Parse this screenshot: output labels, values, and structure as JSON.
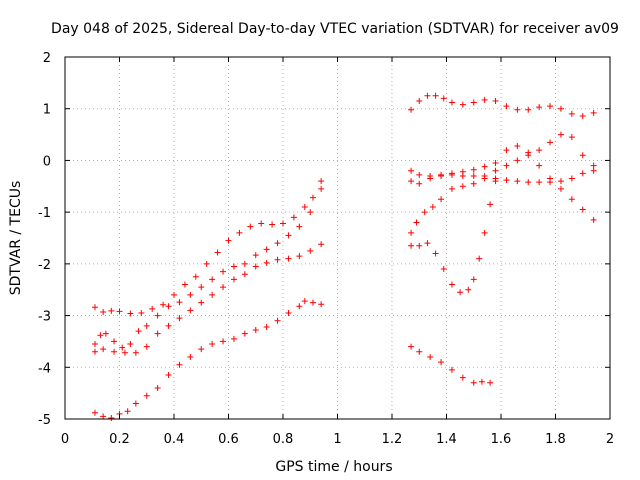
{
  "chart_data": {
    "type": "scatter",
    "title": "Day 048 of 2025, Sidereal Day-to-day VTEC variation (SDTVAR) for receiver av09",
    "xlabel": "GPS time / hours",
    "ylabel": "SDTVAR / TECUs",
    "xlim": [
      0,
      2
    ],
    "ylim": [
      -5,
      2
    ],
    "x_ticks": [
      0,
      0.2,
      0.4,
      0.6,
      0.8,
      1,
      1.2,
      1.4,
      1.6,
      1.8,
      2
    ],
    "x_tick_labels": [
      "0",
      "0.2",
      "0.4",
      "0.6",
      "0.8",
      "1",
      "1.2",
      "1.4",
      "1.6",
      "1.8",
      "2"
    ],
    "y_ticks": [
      2,
      1,
      0,
      -1,
      -2,
      -3,
      -4,
      -5
    ],
    "y_tick_labels": [
      "2",
      "1",
      "0",
      "-1",
      "-2",
      "-3",
      "-4",
      "-5"
    ],
    "grid": true,
    "marker": "plus",
    "marker_color": "#ff0000",
    "series": [
      {
        "name": "arc-a1",
        "points": [
          [
            0.11,
            -2.84
          ],
          [
            0.14,
            -2.93
          ],
          [
            0.17,
            -2.91
          ],
          [
            0.2,
            -2.92
          ],
          [
            0.24,
            -2.96
          ],
          [
            0.28,
            -2.95
          ],
          [
            0.32,
            -2.87
          ],
          [
            0.36,
            -2.79
          ],
          [
            0.4,
            -2.6
          ],
          [
            0.44,
            -2.4
          ],
          [
            0.48,
            -2.25
          ],
          [
            0.52,
            -2.0
          ],
          [
            0.56,
            -1.78
          ],
          [
            0.6,
            -1.55
          ],
          [
            0.64,
            -1.4
          ],
          [
            0.68,
            -1.28
          ],
          [
            0.72,
            -1.22
          ],
          [
            0.76,
            -1.24
          ],
          [
            0.8,
            -1.22
          ],
          [
            0.84,
            -1.1
          ],
          [
            0.88,
            -0.9
          ],
          [
            0.91,
            -0.72
          ],
          [
            0.94,
            -0.4
          ]
        ]
      },
      {
        "name": "arc-a2",
        "points": [
          [
            0.11,
            -3.55
          ],
          [
            0.13,
            -3.38
          ],
          [
            0.15,
            -3.35
          ],
          [
            0.18,
            -3.5
          ],
          [
            0.21,
            -3.62
          ],
          [
            0.24,
            -3.55
          ],
          [
            0.27,
            -3.3
          ],
          [
            0.3,
            -3.2
          ],
          [
            0.34,
            -3.0
          ],
          [
            0.38,
            -2.82
          ],
          [
            0.42,
            -2.74
          ],
          [
            0.46,
            -2.6
          ],
          [
            0.5,
            -2.45
          ],
          [
            0.54,
            -2.3
          ],
          [
            0.58,
            -2.15
          ],
          [
            0.62,
            -2.05
          ],
          [
            0.66,
            -2.0
          ],
          [
            0.7,
            -1.83
          ],
          [
            0.74,
            -1.72
          ],
          [
            0.78,
            -1.6
          ],
          [
            0.82,
            -1.45
          ],
          [
            0.86,
            -1.28
          ],
          [
            0.9,
            -1.0
          ],
          [
            0.94,
            -0.55
          ]
        ]
      },
      {
        "name": "arc-a3",
        "points": [
          [
            0.11,
            -3.7
          ],
          [
            0.14,
            -3.65
          ],
          [
            0.18,
            -3.7
          ],
          [
            0.22,
            -3.72
          ],
          [
            0.26,
            -3.72
          ],
          [
            0.3,
            -3.6
          ],
          [
            0.34,
            -3.35
          ],
          [
            0.38,
            -3.2
          ],
          [
            0.42,
            -3.05
          ],
          [
            0.46,
            -2.9
          ],
          [
            0.5,
            -2.75
          ],
          [
            0.54,
            -2.6
          ],
          [
            0.58,
            -2.45
          ],
          [
            0.62,
            -2.3
          ],
          [
            0.66,
            -2.2
          ],
          [
            0.7,
            -2.05
          ],
          [
            0.74,
            -1.98
          ],
          [
            0.78,
            -1.92
          ],
          [
            0.82,
            -1.9
          ],
          [
            0.86,
            -1.85
          ],
          [
            0.9,
            -1.75
          ],
          [
            0.94,
            -1.62
          ]
        ]
      },
      {
        "name": "arc-a4",
        "points": [
          [
            0.11,
            -4.88
          ],
          [
            0.14,
            -4.95
          ],
          [
            0.17,
            -4.98
          ],
          [
            0.2,
            -4.9
          ],
          [
            0.23,
            -4.85
          ],
          [
            0.26,
            -4.7
          ],
          [
            0.3,
            -4.55
          ],
          [
            0.34,
            -4.4
          ],
          [
            0.38,
            -4.15
          ],
          [
            0.42,
            -3.95
          ],
          [
            0.46,
            -3.8
          ],
          [
            0.5,
            -3.65
          ],
          [
            0.54,
            -3.55
          ],
          [
            0.58,
            -3.5
          ],
          [
            0.62,
            -3.45
          ],
          [
            0.66,
            -3.35
          ],
          [
            0.7,
            -3.28
          ],
          [
            0.74,
            -3.22
          ],
          [
            0.78,
            -3.1
          ],
          [
            0.82,
            -2.95
          ],
          [
            0.86,
            -2.82
          ],
          [
            0.88,
            -2.72
          ],
          [
            0.91,
            -2.75
          ],
          [
            0.94,
            -2.78
          ]
        ]
      },
      {
        "name": "arc-b1",
        "points": [
          [
            1.27,
            0.98
          ],
          [
            1.3,
            1.15
          ],
          [
            1.33,
            1.25
          ],
          [
            1.36,
            1.25
          ],
          [
            1.39,
            1.2
          ],
          [
            1.42,
            1.12
          ],
          [
            1.46,
            1.08
          ],
          [
            1.5,
            1.12
          ],
          [
            1.54,
            1.17
          ],
          [
            1.58,
            1.15
          ],
          [
            1.62,
            1.05
          ],
          [
            1.66,
            0.98
          ],
          [
            1.7,
            0.98
          ],
          [
            1.74,
            1.03
          ],
          [
            1.78,
            1.05
          ],
          [
            1.82,
            1.0
          ],
          [
            1.86,
            0.9
          ],
          [
            1.9,
            0.86
          ],
          [
            1.94,
            0.92
          ]
        ]
      },
      {
        "name": "arc-b2",
        "points": [
          [
            1.27,
            -0.2
          ],
          [
            1.3,
            -0.28
          ],
          [
            1.34,
            -0.3
          ],
          [
            1.38,
            -0.28
          ],
          [
            1.42,
            -0.25
          ],
          [
            1.46,
            -0.22
          ],
          [
            1.5,
            -0.18
          ],
          [
            1.54,
            -0.12
          ],
          [
            1.58,
            -0.05
          ],
          [
            1.62,
            0.2
          ],
          [
            1.66,
            0.28
          ],
          [
            1.7,
            0.15
          ],
          [
            1.74,
            -0.1
          ],
          [
            1.78,
            -0.35
          ],
          [
            1.82,
            -0.55
          ],
          [
            1.86,
            -0.75
          ],
          [
            1.9,
            -0.95
          ],
          [
            1.94,
            -1.15
          ]
        ]
      },
      {
        "name": "arc-b3",
        "points": [
          [
            1.27,
            -0.4
          ],
          [
            1.3,
            -0.45
          ],
          [
            1.34,
            -0.35
          ],
          [
            1.38,
            -0.3
          ],
          [
            1.42,
            -0.28
          ],
          [
            1.46,
            -0.3
          ],
          [
            1.5,
            -0.3
          ],
          [
            1.54,
            -0.3
          ],
          [
            1.58,
            -0.35
          ],
          [
            1.62,
            -0.38
          ],
          [
            1.66,
            -0.4
          ],
          [
            1.7,
            -0.42
          ],
          [
            1.74,
            -0.42
          ],
          [
            1.78,
            -0.42
          ],
          [
            1.82,
            -0.4
          ],
          [
            1.86,
            -0.35
          ],
          [
            1.9,
            -0.25
          ],
          [
            1.94,
            -0.1
          ]
        ]
      },
      {
        "name": "arc-b4",
        "points": [
          [
            1.27,
            -1.4
          ],
          [
            1.29,
            -1.2
          ],
          [
            1.32,
            -1.0
          ],
          [
            1.35,
            -0.9
          ],
          [
            1.38,
            -0.75
          ],
          [
            1.42,
            -0.55
          ],
          [
            1.46,
            -0.5
          ],
          [
            1.5,
            -0.45
          ],
          [
            1.54,
            -0.35
          ],
          [
            1.58,
            -0.2
          ],
          [
            1.62,
            -0.1
          ],
          [
            1.66,
            0.0
          ],
          [
            1.7,
            0.1
          ],
          [
            1.74,
            0.2
          ],
          [
            1.78,
            0.35
          ],
          [
            1.82,
            0.5
          ],
          [
            1.86,
            0.45
          ],
          [
            1.9,
            0.1
          ],
          [
            1.94,
            -0.2
          ]
        ]
      },
      {
        "name": "arc-b5",
        "points": [
          [
            1.27,
            -1.65
          ],
          [
            1.3,
            -1.65
          ],
          [
            1.33,
            -1.6
          ],
          [
            1.36,
            -1.8
          ],
          [
            1.39,
            -2.1
          ],
          [
            1.42,
            -2.4
          ],
          [
            1.45,
            -2.55
          ],
          [
            1.48,
            -2.5
          ],
          [
            1.5,
            -2.3
          ],
          [
            1.52,
            -1.9
          ],
          [
            1.54,
            -1.4
          ],
          [
            1.56,
            -0.85
          ],
          [
            1.58,
            -0.4
          ]
        ]
      },
      {
        "name": "arc-b6",
        "points": [
          [
            1.27,
            -3.6
          ],
          [
            1.3,
            -3.7
          ],
          [
            1.34,
            -3.8
          ],
          [
            1.38,
            -3.9
          ],
          [
            1.42,
            -4.05
          ],
          [
            1.46,
            -4.2
          ],
          [
            1.5,
            -4.3
          ],
          [
            1.53,
            -4.28
          ],
          [
            1.56,
            -4.3
          ]
        ]
      }
    ]
  }
}
